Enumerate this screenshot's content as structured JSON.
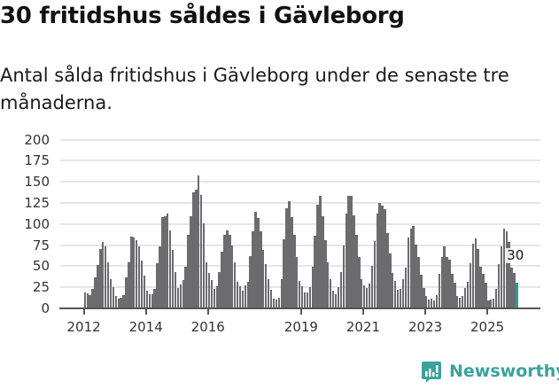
{
  "header": {
    "title": "30 fritidshus såldes i Gävleborg",
    "subtitle": "Antal sålda fritidshus i Gävleborg under de senaste tre månaderna."
  },
  "annotation": {
    "label": "30"
  },
  "brand": {
    "name": "Newsworthy",
    "icon": "newsworthy-chart-bubble-icon",
    "color": "#3aa39b"
  },
  "colors": {
    "bar": "#6c6b70",
    "highlight": "#2a9d95",
    "grid": "#e6e6e6"
  },
  "chart_data": {
    "type": "bar",
    "title": "30 fritidshus såldes i Gävleborg",
    "subtitle": "Antal sålda fritidshus i Gävleborg under de senaste tre månaderna.",
    "xlabel": "",
    "ylabel": "",
    "ylim": [
      0,
      200
    ],
    "yticks": [
      0,
      25,
      50,
      75,
      100,
      125,
      150,
      175,
      200
    ],
    "xtick_labels": [
      "2012",
      "2014",
      "2016",
      "2019",
      "2021",
      "2023",
      "2025"
    ],
    "grid": true,
    "legend": null,
    "start": "2012-01",
    "frequency": "monthly",
    "highlight_last": true,
    "annotations": [
      {
        "text": "30",
        "at": "last"
      }
    ],
    "values": [
      19,
      18,
      16,
      23,
      37,
      51,
      70,
      79,
      73,
      55,
      35,
      25,
      15,
      12,
      13,
      16,
      37,
      55,
      85,
      84,
      81,
      73,
      57,
      39,
      21,
      17,
      17,
      23,
      54,
      74,
      108,
      109,
      112,
      92,
      69,
      43,
      24,
      28,
      34,
      49,
      87,
      109,
      138,
      141,
      157,
      134,
      101,
      55,
      42,
      34,
      23,
      26,
      43,
      67,
      87,
      92,
      87,
      75,
      55,
      31,
      26,
      21,
      27,
      32,
      62,
      91,
      114,
      107,
      91,
      69,
      52,
      35,
      22,
      12,
      10,
      13,
      35,
      82,
      119,
      127,
      108,
      87,
      61,
      33,
      26,
      19,
      19,
      25,
      49,
      86,
      123,
      133,
      109,
      81,
      55,
      35,
      21,
      17,
      25,
      43,
      75,
      112,
      133,
      133,
      110,
      87,
      61,
      35,
      27,
      24,
      29,
      50,
      80,
      112,
      125,
      122,
      118,
      89,
      65,
      42,
      33,
      22,
      23,
      35,
      48,
      84,
      94,
      98,
      76,
      61,
      40,
      24,
      15,
      10,
      12,
      9,
      16,
      41,
      61,
      74,
      61,
      58,
      41,
      30,
      15,
      13,
      15,
      24,
      32,
      54,
      77,
      83,
      70,
      49,
      41,
      30,
      9,
      10,
      12,
      23,
      53,
      73,
      95,
      91,
      79,
      48,
      42,
      30
    ]
  }
}
